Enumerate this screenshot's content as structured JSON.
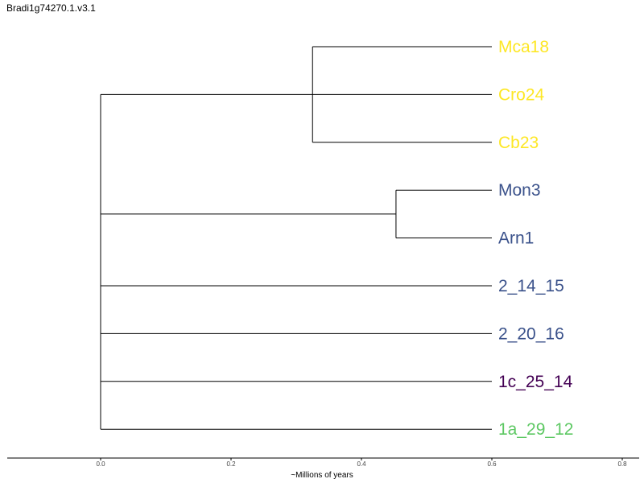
{
  "title": "Bradi1g74270.1.v3.1",
  "x_axis": {
    "label": "~Millions of years",
    "ticks": [
      0.0,
      0.2,
      0.4,
      0.6,
      0.8
    ],
    "tick_labels": [
      "0.0",
      "0.2",
      "0.4",
      "0.6",
      "0.8"
    ]
  },
  "colors": {
    "yellow": "#FDE725",
    "blue": "#3B528B",
    "purple": "#440154",
    "green": "#5DC863",
    "branch": "#000000"
  },
  "tree": {
    "leaves": [
      {
        "name": "Mca18",
        "color": "#FDE725"
      },
      {
        "name": "Cro24",
        "color": "#FDE725"
      },
      {
        "name": "Cb23",
        "color": "#FDE725"
      },
      {
        "name": "Mon3",
        "color": "#3B528B"
      },
      {
        "name": "Arn1",
        "color": "#3B528B"
      },
      {
        "name": "2_14_15",
        "color": "#3B528B"
      },
      {
        "name": "2_20_16",
        "color": "#3B528B"
      },
      {
        "name": "1c_25_14",
        "color": "#440154"
      },
      {
        "name": "1a_29_12",
        "color": "#5DC863"
      }
    ],
    "leaf_age": 0.6,
    "nodes": [
      {
        "id": "clade-mca-cro-cb",
        "age": 0.325,
        "children": [
          "Mca18",
          "Cro24",
          "Cb23"
        ]
      },
      {
        "id": "clade-mon-arn",
        "age": 0.453,
        "children": [
          "Mon3",
          "Arn1"
        ]
      },
      {
        "id": "root",
        "age": 0.0,
        "children": [
          "clade-mca-cro-cb",
          "clade-mon-arn",
          "2_14_15",
          "2_20_16",
          "1c_25_14",
          "1a_29_12"
        ]
      }
    ]
  }
}
